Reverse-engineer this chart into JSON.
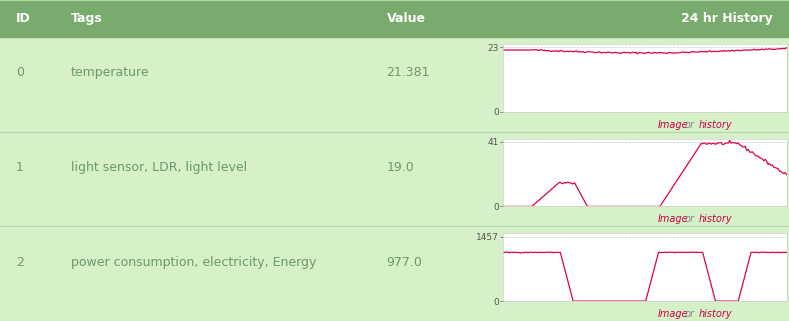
{
  "header_bg": "#7aab6e",
  "row_bg": "#d6f0c8",
  "header_text_color": "#ffffff",
  "cell_text_color": "#6a9a6a",
  "link_color_image": "#cc0044",
  "link_color_or": "#888888",
  "link_color_history": "#cc0044",
  "table_border_color": "#aaddaa",
  "cols": [
    "ID",
    "Tags",
    "Value",
    "24 hr History"
  ],
  "rows": [
    {
      "id": "0",
      "tag": "temperature",
      "value": "21.381",
      "ymax": 23,
      "ymin": 0
    },
    {
      "id": "1",
      "tag": "light sensor, LDR, light level",
      "value": "19.0",
      "ymax": 41,
      "ymin": 0
    },
    {
      "id": "2",
      "tag": "power consumption, electricity, Energy",
      "value": "977.0",
      "ymax": 1457,
      "ymin": 0
    }
  ],
  "line_color": "#dd0055",
  "grid_color": "#bbddbb",
  "plot_bg": "#ffffff",
  "font_size_header": 9,
  "font_size_cell": 9
}
